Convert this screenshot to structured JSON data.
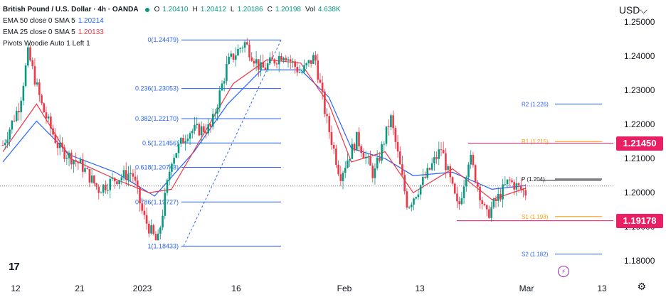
{
  "header": {
    "symbol": "British Pound / U.S. Dollar · 4h · OANDA",
    "ohlc": [
      {
        "k": "O",
        "v": "1.20410"
      },
      {
        "k": "H",
        "v": "1.20412"
      },
      {
        "k": "L",
        "v": "1.20186"
      },
      {
        "k": "C",
        "v": "1.20198"
      },
      {
        "k": "Vol",
        "v": "4.638K"
      }
    ],
    "ema50_label": "EMA 50 close 0 SMA 5",
    "ema50_value": "1.20214",
    "ema25_label": "EMA 25 close 0 SMA 5",
    "ema25_value": "1.20133",
    "pivots_label": "Pivots Woodie Auto 1 Left 1",
    "currency": "USD"
  },
  "colors": {
    "up": "#089981",
    "down": "#f23645",
    "ema50": "#2962ff",
    "ema25": "#f23645",
    "fib": "#2962ff",
    "pivot_r": "#ff9800",
    "pivot_s": "#ff9800",
    "pivot_r2s2": "#2962ff",
    "highlight": "#e91e63"
  },
  "chart_data": {
    "type": "candlestick",
    "ylim": [
      1.174,
      1.2565
    ],
    "y_ticks": [
      "1.25000",
      "1.24000",
      "1.23000",
      "1.22000",
      "1.21000",
      "1.20000",
      "1.19000",
      "1.18000"
    ],
    "x_ticks": [
      "12",
      "21",
      "2023",
      "16",
      "Feb",
      "13",
      "Mar",
      "13"
    ],
    "price_badges": [
      "1.21450",
      "1.19178"
    ],
    "fibonacci": [
      {
        "label": "0(1.24479)",
        "value": 1.24479
      },
      {
        "label": "0.236(1.23053)",
        "value": 1.23053
      },
      {
        "label": "0.382(1.22170)",
        "value": 1.2217
      },
      {
        "label": "0.5(1.21456)",
        "value": 1.21456
      },
      {
        "label": "0.618(1.20743)",
        "value": 1.20743
      },
      {
        "label": "0.786(1.19727)",
        "value": 1.19727
      },
      {
        "label": "1(1.18433)",
        "value": 1.18433
      }
    ],
    "pivots": [
      {
        "label": "R2 (1.226)",
        "value": 1.226
      },
      {
        "label": "R1 (1.215)",
        "value": 1.215
      },
      {
        "label": "P (1.204)",
        "value": 1.204
      },
      {
        "label": "S1 (1.193)",
        "value": 1.193
      },
      {
        "label": "S2 (1.182)",
        "value": 1.182
      }
    ],
    "support_level": 1.19178,
    "resistance_level": 1.2145,
    "last_price": 1.20198,
    "key_points": [
      {
        "x": 0.0,
        "y": 1.214
      },
      {
        "x": 0.03,
        "y": 1.226
      },
      {
        "x": 0.045,
        "y": 1.241
      },
      {
        "x": 0.07,
        "y": 1.225
      },
      {
        "x": 0.1,
        "y": 1.213
      },
      {
        "x": 0.14,
        "y": 1.208
      },
      {
        "x": 0.17,
        "y": 1.201
      },
      {
        "x": 0.2,
        "y": 1.204
      },
      {
        "x": 0.23,
        "y": 1.206
      },
      {
        "x": 0.25,
        "y": 1.193
      },
      {
        "x": 0.275,
        "y": 1.185
      },
      {
        "x": 0.3,
        "y": 1.21
      },
      {
        "x": 0.33,
        "y": 1.218
      },
      {
        "x": 0.37,
        "y": 1.219
      },
      {
        "x": 0.4,
        "y": 1.238
      },
      {
        "x": 0.43,
        "y": 1.244
      },
      {
        "x": 0.46,
        "y": 1.236
      },
      {
        "x": 0.5,
        "y": 1.241
      },
      {
        "x": 0.53,
        "y": 1.235
      },
      {
        "x": 0.555,
        "y": 1.24
      },
      {
        "x": 0.575,
        "y": 1.222
      },
      {
        "x": 0.6,
        "y": 1.205
      },
      {
        "x": 0.63,
        "y": 1.216
      },
      {
        "x": 0.66,
        "y": 1.205
      },
      {
        "x": 0.69,
        "y": 1.222
      },
      {
        "x": 0.72,
        "y": 1.196
      },
      {
        "x": 0.75,
        "y": 1.204
      },
      {
        "x": 0.78,
        "y": 1.213
      },
      {
        "x": 0.81,
        "y": 1.195
      },
      {
        "x": 0.83,
        "y": 1.211
      },
      {
        "x": 0.86,
        "y": 1.193
      },
      {
        "x": 0.9,
        "y": 1.2035
      },
      {
        "x": 0.93,
        "y": 1.2
      }
    ],
    "ema50_points": [
      {
        "x": 0.0,
        "y": 1.209
      },
      {
        "x": 0.06,
        "y": 1.221
      },
      {
        "x": 0.12,
        "y": 1.211
      },
      {
        "x": 0.2,
        "y": 1.206
      },
      {
        "x": 0.27,
        "y": 1.199
      },
      {
        "x": 0.34,
        "y": 1.212
      },
      {
        "x": 0.4,
        "y": 1.226
      },
      {
        "x": 0.46,
        "y": 1.236
      },
      {
        "x": 0.53,
        "y": 1.236
      },
      {
        "x": 0.58,
        "y": 1.228
      },
      {
        "x": 0.62,
        "y": 1.213
      },
      {
        "x": 0.68,
        "y": 1.21
      },
      {
        "x": 0.73,
        "y": 1.205
      },
      {
        "x": 0.8,
        "y": 1.206
      },
      {
        "x": 0.87,
        "y": 1.201
      },
      {
        "x": 0.93,
        "y": 1.2021
      }
    ],
    "ema25_points": [
      {
        "x": 0.0,
        "y": 1.212
      },
      {
        "x": 0.06,
        "y": 1.226
      },
      {
        "x": 0.12,
        "y": 1.21
      },
      {
        "x": 0.2,
        "y": 1.204
      },
      {
        "x": 0.26,
        "y": 1.2
      },
      {
        "x": 0.3,
        "y": 1.201
      },
      {
        "x": 0.36,
        "y": 1.218
      },
      {
        "x": 0.41,
        "y": 1.232
      },
      {
        "x": 0.47,
        "y": 1.239
      },
      {
        "x": 0.53,
        "y": 1.238
      },
      {
        "x": 0.58,
        "y": 1.226
      },
      {
        "x": 0.62,
        "y": 1.209
      },
      {
        "x": 0.68,
        "y": 1.212
      },
      {
        "x": 0.73,
        "y": 1.2
      },
      {
        "x": 0.8,
        "y": 1.207
      },
      {
        "x": 0.87,
        "y": 1.198
      },
      {
        "x": 0.93,
        "y": 1.2013
      }
    ]
  }
}
